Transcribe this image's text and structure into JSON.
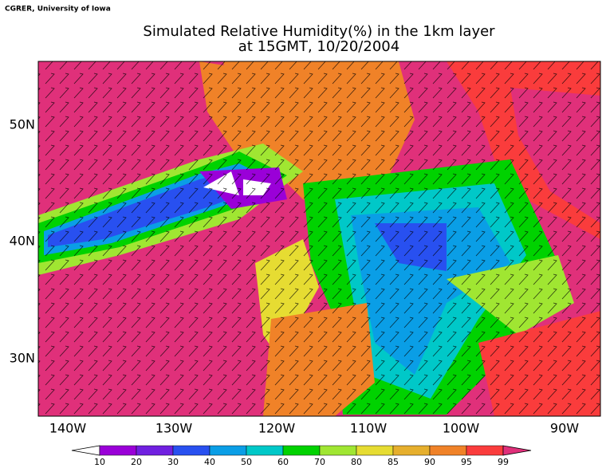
{
  "header": {
    "credit": "CGRER, University of Iowa",
    "title": "Simulated Relative Humidity(%) in the 1km layer",
    "subtitle": "at 15GMT, 10/20/2004"
  },
  "map": {
    "x_labels": [
      "140W",
      "130W",
      "120W",
      "110W",
      "100W",
      "90W"
    ],
    "y_labels": [
      "50N",
      "40N",
      "30N"
    ]
  },
  "colorbar": {
    "levels": [
      10,
      20,
      30,
      40,
      50,
      60,
      70,
      80,
      85,
      90,
      95,
      99
    ],
    "colors": [
      "#ffffff",
      "#9a00d8",
      "#7020e0",
      "#2850f0",
      "#0a9ee6",
      "#00c8c8",
      "#00d200",
      "#a0e632",
      "#e6dc32",
      "#e6af2d",
      "#f08228",
      "#fa3c3c",
      "#e0307a"
    ]
  }
}
